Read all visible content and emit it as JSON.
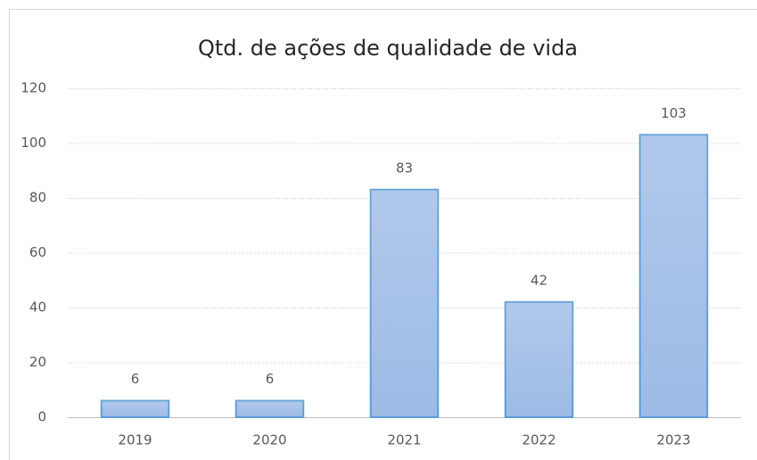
{
  "chart_data": {
    "type": "bar",
    "title": "Qtd. de ações de qualidade de vida",
    "categories": [
      "2019",
      "2020",
      "2021",
      "2022",
      "2023"
    ],
    "values": [
      6,
      6,
      83,
      42,
      103
    ],
    "color": "#9dbbe6",
    "edgecolor": "#5b9bd5",
    "ylim": [
      0,
      120
    ],
    "yticks": [
      0,
      20,
      40,
      60,
      80,
      100,
      120
    ],
    "grid": true
  }
}
